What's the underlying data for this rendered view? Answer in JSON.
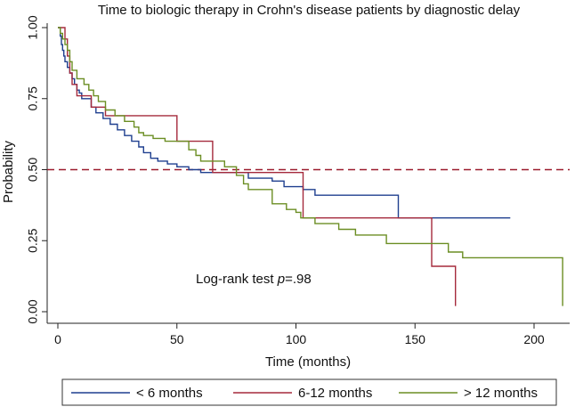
{
  "chart_data": {
    "type": "line",
    "title": "Time to biologic therapy in Crohn's disease patients by diagnostic delay",
    "xlabel": "Time (months)",
    "ylabel": "Probability",
    "xlim": [
      0,
      215
    ],
    "ylim": [
      0,
      1.02
    ],
    "xticks": [
      "0",
      "50",
      "100",
      "150",
      "200"
    ],
    "xtick_values": [
      0,
      50,
      100,
      150,
      200
    ],
    "yticks": [
      "0.00",
      "0.25",
      "0.50",
      "0.75",
      "1.00"
    ],
    "ytick_values": [
      0,
      0.25,
      0.5,
      0.75,
      1.0
    ],
    "grid": false,
    "legend_position": "bottom",
    "reference_line": {
      "y": 0.5,
      "style": "dashed",
      "color": "#9b1c2e"
    },
    "annotation": {
      "prefix": "Log-rank test ",
      "italic": "p",
      "suffix": "=.98"
    },
    "series": [
      {
        "name": "< 6 months",
        "color": "#1f3f8f",
        "step_points": [
          [
            0,
            1.0
          ],
          [
            1,
            0.97
          ],
          [
            1.5,
            0.94
          ],
          [
            2,
            0.92
          ],
          [
            2.5,
            0.9
          ],
          [
            3,
            0.88
          ],
          [
            4,
            0.86
          ],
          [
            5,
            0.84
          ],
          [
            6,
            0.82
          ],
          [
            7,
            0.8
          ],
          [
            8,
            0.78
          ],
          [
            9,
            0.77
          ],
          [
            10,
            0.75
          ],
          [
            14,
            0.72
          ],
          [
            16,
            0.7
          ],
          [
            19,
            0.68
          ],
          [
            22,
            0.66
          ],
          [
            25,
            0.64
          ],
          [
            28,
            0.62
          ],
          [
            31,
            0.6
          ],
          [
            34,
            0.58
          ],
          [
            36,
            0.56
          ],
          [
            39,
            0.54
          ],
          [
            42,
            0.53
          ],
          [
            46,
            0.52
          ],
          [
            50,
            0.51
          ],
          [
            55,
            0.5
          ],
          [
            60,
            0.49
          ],
          [
            80,
            0.47
          ],
          [
            90,
            0.46
          ],
          [
            95,
            0.44
          ],
          [
            103,
            0.43
          ],
          [
            108,
            0.41
          ],
          [
            120,
            0.41
          ],
          [
            143,
            0.41
          ],
          [
            143,
            0.33
          ],
          [
            190,
            0.33
          ]
        ]
      },
      {
        "name": "6-12 months",
        "color": "#a52a3c",
        "step_points": [
          [
            0,
            1.0
          ],
          [
            2,
            1.0
          ],
          [
            3,
            0.96
          ],
          [
            4,
            0.9
          ],
          [
            5,
            0.84
          ],
          [
            6,
            0.8
          ],
          [
            8,
            0.76
          ],
          [
            14,
            0.72
          ],
          [
            20,
            0.69
          ],
          [
            50,
            0.69
          ],
          [
            50,
            0.6
          ],
          [
            65,
            0.6
          ],
          [
            65,
            0.49
          ],
          [
            103,
            0.49
          ],
          [
            103,
            0.33
          ],
          [
            157,
            0.33
          ],
          [
            157,
            0.16
          ],
          [
            167,
            0.16
          ],
          [
            167,
            0.02
          ]
        ]
      },
      {
        "name": "> 12 months",
        "color": "#6b8e23",
        "step_points": [
          [
            0,
            1.0
          ],
          [
            1,
            0.98
          ],
          [
            2,
            0.96
          ],
          [
            3,
            0.94
          ],
          [
            4,
            0.92
          ],
          [
            5,
            0.88
          ],
          [
            6,
            0.85
          ],
          [
            8,
            0.82
          ],
          [
            11,
            0.8
          ],
          [
            13,
            0.78
          ],
          [
            15,
            0.76
          ],
          [
            17,
            0.74
          ],
          [
            20,
            0.71
          ],
          [
            24,
            0.69
          ],
          [
            28,
            0.67
          ],
          [
            32,
            0.65
          ],
          [
            34,
            0.63
          ],
          [
            36,
            0.62
          ],
          [
            40,
            0.61
          ],
          [
            45,
            0.6
          ],
          [
            55,
            0.57
          ],
          [
            58,
            0.55
          ],
          [
            60,
            0.53
          ],
          [
            70,
            0.51
          ],
          [
            75,
            0.48
          ],
          [
            78,
            0.45
          ],
          [
            80,
            0.43
          ],
          [
            90,
            0.38
          ],
          [
            96,
            0.36
          ],
          [
            100,
            0.35
          ],
          [
            102,
            0.33
          ],
          [
            108,
            0.31
          ],
          [
            118,
            0.29
          ],
          [
            125,
            0.27
          ],
          [
            138,
            0.24
          ],
          [
            152,
            0.24
          ],
          [
            164,
            0.21
          ],
          [
            170,
            0.19
          ],
          [
            212,
            0.19
          ],
          [
            212,
            0.02
          ]
        ]
      }
    ]
  }
}
